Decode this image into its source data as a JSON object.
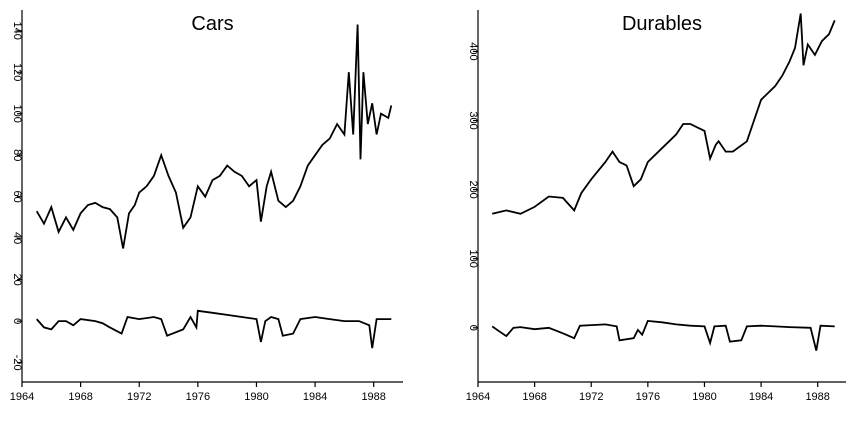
{
  "chart_data": [
    {
      "type": "line",
      "title": "Cars",
      "xlim": [
        1964,
        1990
      ],
      "xticks": [
        1964,
        1968,
        1972,
        1976,
        1980,
        1984,
        1988
      ],
      "ylim": [
        -25,
        150
      ],
      "yticks": [
        -20,
        0,
        20,
        40,
        60,
        80,
        100,
        120,
        140
      ],
      "series": [
        {
          "color": "#000000",
          "x": [
            1965,
            1965.5,
            1966,
            1966.5,
            1967,
            1967.5,
            1968,
            1968.5,
            1969,
            1969.5,
            1970,
            1970.5,
            1970.9,
            1971.3,
            1971.7,
            1972,
            1972.5,
            1973,
            1973.5,
            1974,
            1974.5,
            1975,
            1975.5,
            1976,
            1976.5,
            1977,
            1977.5,
            1978,
            1978.5,
            1979,
            1979.5,
            1980,
            1980.3,
            1980.7,
            1981,
            1981.5,
            1982,
            1982.5,
            1983,
            1983.5,
            1984,
            1984.5,
            1985,
            1985.5,
            1986,
            1986.3,
            1986.6,
            1986.9,
            1987.1,
            1987.3,
            1987.6,
            1987.9,
            1988.2,
            1988.5,
            1989,
            1989.2
          ],
          "values": [
            53,
            47,
            55,
            43,
            50,
            44,
            52,
            56,
            57,
            55,
            54,
            50,
            35,
            52,
            56,
            62,
            65,
            70,
            80,
            70,
            62,
            45,
            50,
            65,
            60,
            68,
            70,
            75,
            72,
            70,
            65,
            68,
            48,
            65,
            72,
            58,
            55,
            58,
            65,
            75,
            80,
            85,
            88,
            95,
            90,
            120,
            90,
            143,
            78,
            120,
            95,
            105,
            90,
            100,
            98,
            104
          ]
        },
        {
          "color": "#000000",
          "x": [
            1965,
            1965.5,
            1966,
            1966.5,
            1967,
            1967.5,
            1968,
            1969,
            1969.5,
            1970,
            1970.8,
            1971.2,
            1972,
            1973,
            1973.5,
            1973.9,
            1975,
            1975.5,
            1975.9,
            1976,
            1977,
            1978,
            1979,
            1980,
            1980.3,
            1980.6,
            1981,
            1981.5,
            1981.8,
            1982.5,
            1983,
            1984,
            1985,
            1986,
            1987,
            1987.7,
            1987.9,
            1988.2,
            1989.2
          ],
          "values": [
            1,
            -3,
            -4,
            0,
            0,
            -2,
            1,
            0,
            -1,
            -3,
            -6,
            2,
            1,
            2,
            1,
            -7,
            -4,
            2,
            -3,
            5,
            4,
            3,
            2,
            1,
            -10,
            0,
            2,
            1,
            -7,
            -6,
            1,
            2,
            1,
            0,
            0,
            -2,
            -13,
            1,
            1
          ]
        }
      ]
    },
    {
      "type": "line",
      "title": "Durables",
      "xlim": [
        1964,
        1990
      ],
      "xticks": [
        1964,
        1968,
        1972,
        1976,
        1980,
        1984,
        1988
      ],
      "ylim": [
        -90,
        460
      ],
      "yticks": [
        0,
        100,
        200,
        300,
        400
      ],
      "series": [
        {
          "color": "#000000",
          "x": [
            1965,
            1966,
            1967,
            1968,
            1969,
            1970,
            1970.8,
            1971.3,
            1972,
            1973,
            1973.5,
            1974,
            1974.5,
            1975,
            1975.5,
            1976,
            1977,
            1978,
            1978.5,
            1979,
            1980,
            1980.4,
            1980.8,
            1981,
            1981.5,
            1982,
            1983,
            1983.5,
            1984,
            1985,
            1985.5,
            1986,
            1986.4,
            1986.8,
            1987,
            1987.3,
            1987.8,
            1988.3,
            1988.8,
            1989.2
          ],
          "values": [
            165,
            170,
            165,
            175,
            190,
            188,
            170,
            195,
            215,
            240,
            255,
            240,
            235,
            205,
            215,
            240,
            260,
            280,
            295,
            295,
            285,
            245,
            265,
            270,
            255,
            255,
            270,
            300,
            330,
            350,
            365,
            385,
            405,
            455,
            380,
            410,
            395,
            415,
            425,
            445
          ]
        },
        {
          "color": "#000000",
          "x": [
            1965,
            1965.5,
            1966,
            1966.5,
            1967,
            1968,
            1969,
            1970,
            1970.8,
            1971.2,
            1973,
            1973.8,
            1974,
            1975,
            1975.3,
            1975.6,
            1976,
            1977,
            1978,
            1979,
            1980,
            1980.4,
            1980.7,
            1981.5,
            1981.8,
            1982.6,
            1983,
            1984,
            1985,
            1986,
            1987.5,
            1987.9,
            1988.2,
            1989.2
          ],
          "values": [
            2,
            -5,
            -12,
            0,
            1,
            -2,
            0,
            -8,
            -15,
            3,
            5,
            2,
            -18,
            -15,
            -3,
            -10,
            10,
            8,
            5,
            3,
            2,
            -22,
            2,
            3,
            -20,
            -18,
            2,
            3,
            2,
            1,
            0,
            -33,
            3,
            2
          ]
        }
      ]
    }
  ]
}
